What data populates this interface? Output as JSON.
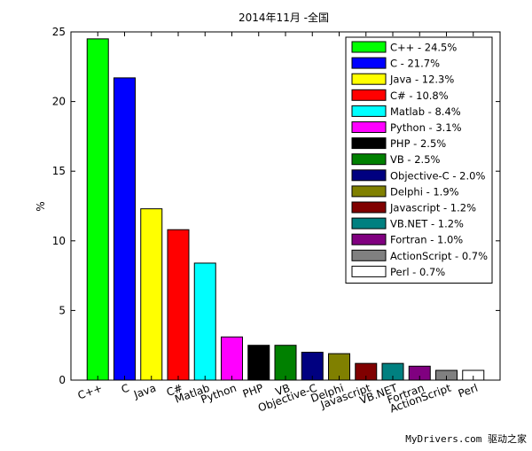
{
  "chart_data": {
    "type": "bar",
    "title": "2014年11月 -全国",
    "xlabel": "",
    "ylabel": "%",
    "ylim": [
      0,
      25
    ],
    "yticks": [
      0,
      5,
      10,
      15,
      20,
      25
    ],
    "grid": false,
    "legend_position": "top-right",
    "categories": [
      "C++",
      "C",
      "Java",
      "C#",
      "Matlab",
      "Python",
      "PHP",
      "VB",
      "Objective-C",
      "Delphi",
      "Javascript",
      "VB.NET",
      "Fortran",
      "ActionScript",
      "Perl"
    ],
    "values": [
      24.5,
      21.7,
      12.3,
      10.8,
      8.4,
      3.1,
      2.5,
      2.5,
      2.0,
      1.9,
      1.2,
      1.2,
      1.0,
      0.7,
      0.7
    ],
    "colors": [
      "#00ff00",
      "#0000ff",
      "#ffff00",
      "#ff0000",
      "#00ffff",
      "#ff00ff",
      "#000000",
      "#008000",
      "#000080",
      "#808000",
      "#800000",
      "#008080",
      "#800080",
      "#808080",
      "#ffffff"
    ],
    "legend": [
      "C++ - 24.5%",
      "C - 21.7%",
      "Java - 12.3%",
      "C# - 10.8%",
      "Matlab - 8.4%",
      "Python - 3.1%",
      "PHP - 2.5%",
      "VB - 2.5%",
      "Objective-C - 2.0%",
      "Delphi - 1.9%",
      "Javascript - 1.2%",
      "VB.NET - 1.2%",
      "Fortran - 1.0%",
      "ActionScript - 0.7%",
      "Perl - 0.7%"
    ]
  },
  "watermark": "MyDrivers.com 驱动之家"
}
